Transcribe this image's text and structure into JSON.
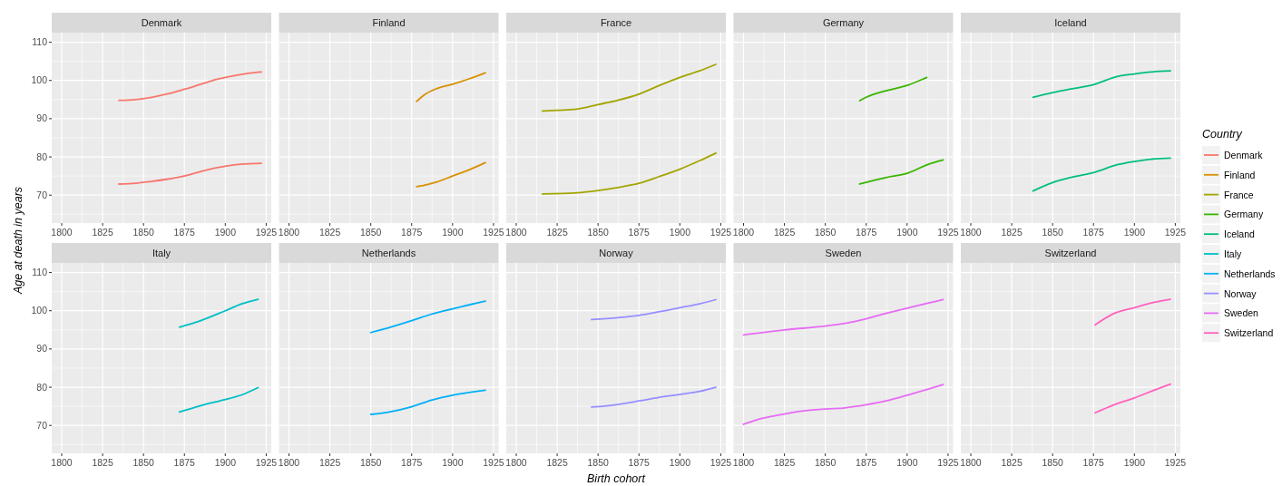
{
  "chart_data": [
    {
      "type": "line",
      "title": "Denmark",
      "ylabel": "Age at death in years",
      "legend": "right",
      "legend_title": "Country",
      "grid": true,
      "xlim": [
        1793.9,
        1928.1
      ],
      "ylim": [
        62.7,
        112.5
      ],
      "xticks": [
        1800,
        {
          "value": 1812.5,
          "label": null
        },
        1825,
        {
          "value": 1837.5,
          "label": null
        },
        1850,
        {
          "value": 1862.5,
          "label": null
        },
        1875,
        {
          "value": 1887.5,
          "label": null
        },
        1900,
        {
          "value": 1912.5,
          "label": null
        },
        1925
      ],
      "yticks": [
        {
          "value": 65,
          "label": null
        },
        70,
        {
          "value": 75,
          "label": null
        },
        80,
        {
          "value": 85,
          "label": null
        },
        90,
        {
          "value": 95,
          "label": null
        },
        100,
        {
          "value": 105,
          "label": null
        },
        110
      ],
      "series": [
        {
          "name": "Denmark",
          "color": "#f8766d",
          "x": [
            1835,
            1845,
            1855,
            1865,
            1875,
            1885,
            1895,
            1905,
            1915,
            1922
          ],
          "values": [
            94.8,
            95,
            95.6,
            96.5,
            97.7,
            99,
            100.3,
            101.2,
            101.9,
            102.2
          ]
        },
        {
          "color": "#f8766d",
          "x": [
            1835,
            1845,
            1855,
            1865,
            1875,
            1885,
            1895,
            1905,
            1915,
            1922
          ],
          "values": [
            72.9,
            73.1,
            73.6,
            74.2,
            75,
            76.2,
            77.2,
            77.9,
            78.2,
            78.3
          ]
        }
      ]
    },
    {
      "type": "line",
      "title": "Finland",
      "grid": true,
      "tick_labels": "x",
      "xlim": [
        1793.9,
        1928.1
      ],
      "ylim": [
        62.7,
        112.5
      ],
      "xticks": [
        1800,
        {
          "value": 1812.5,
          "label": null
        },
        1825,
        {
          "value": 1837.5,
          "label": null
        },
        1850,
        {
          "value": 1862.5,
          "label": null
        },
        1875,
        {
          "value": 1887.5,
          "label": null
        },
        1900,
        {
          "value": 1912.5,
          "label": null
        },
        1925
      ],
      "yticks": [
        {
          "value": 65,
          "label": null
        },
        70,
        {
          "value": 75,
          "label": null
        },
        80,
        {
          "value": 85,
          "label": null
        },
        90,
        {
          "value": 95,
          "label": null
        },
        100,
        {
          "value": 105,
          "label": null
        },
        110
      ],
      "series": [
        {
          "name": "Finland",
          "color": "#d89000",
          "x": [
            1878,
            1883,
            1890,
            1900,
            1910,
            1920
          ],
          "values": [
            94.5,
            96.3,
            97.8,
            99,
            100.4,
            102
          ]
        },
        {
          "color": "#d89000",
          "x": [
            1878,
            1885,
            1890,
            1900,
            1910,
            1920
          ],
          "values": [
            72.2,
            72.8,
            73.4,
            75,
            76.6,
            78.5
          ]
        }
      ]
    },
    {
      "type": "line",
      "title": "France",
      "grid": true,
      "tick_labels": "x",
      "xlim": [
        1793.9,
        1928.1
      ],
      "ylim": [
        62.7,
        112.5
      ],
      "xticks": [
        1800,
        {
          "value": 1812.5,
          "label": null
        },
        1825,
        {
          "value": 1837.5,
          "label": null
        },
        1850,
        {
          "value": 1862.5,
          "label": null
        },
        1875,
        {
          "value": 1887.5,
          "label": null
        },
        1900,
        {
          "value": 1912.5,
          "label": null
        },
        1925
      ],
      "yticks": [
        {
          "value": 65,
          "label": null
        },
        70,
        {
          "value": 75,
          "label": null
        },
        80,
        {
          "value": 85,
          "label": null
        },
        90,
        {
          "value": 95,
          "label": null
        },
        100,
        {
          "value": 105,
          "label": null
        },
        110
      ],
      "series": [
        {
          "name": "France",
          "color": "#a3a500",
          "x": [
            1816,
            1825,
            1837,
            1850,
            1862,
            1875,
            1887,
            1900,
            1912,
            1922
          ],
          "values": [
            92,
            92.2,
            92.5,
            93.7,
            94.8,
            96.4,
            98.6,
            100.8,
            102.5,
            104.2
          ]
        },
        {
          "color": "#a3a500",
          "x": [
            1816,
            1837,
            1850,
            1862,
            1875,
            1887,
            1900,
            1912,
            1922
          ],
          "values": [
            70.3,
            70.6,
            71.2,
            72,
            73.1,
            74.8,
            76.8,
            79,
            81
          ]
        }
      ]
    },
    {
      "type": "line",
      "title": "Germany",
      "grid": true,
      "tick_labels": "x",
      "xlim": [
        1793.9,
        1928.1
      ],
      "ylim": [
        62.7,
        112.5
      ],
      "xticks": [
        1800,
        {
          "value": 1812.5,
          "label": null
        },
        1825,
        {
          "value": 1837.5,
          "label": null
        },
        1850,
        {
          "value": 1862.5,
          "label": null
        },
        1875,
        {
          "value": 1887.5,
          "label": null
        },
        1900,
        {
          "value": 1912.5,
          "label": null
        },
        1925
      ],
      "yticks": [
        {
          "value": 65,
          "label": null
        },
        70,
        {
          "value": 75,
          "label": null
        },
        80,
        {
          "value": 85,
          "label": null
        },
        90,
        {
          "value": 95,
          "label": null
        },
        100,
        {
          "value": 105,
          "label": null
        },
        110
      ],
      "series": [
        {
          "name": "Germany",
          "color": "#39b600",
          "x": [
            1871,
            1875,
            1887,
            1900,
            1912
          ],
          "values": [
            94.7,
            95.6,
            97.3,
            98.7,
            100.8
          ]
        },
        {
          "color": "#39b600",
          "x": [
            1871,
            1887,
            1900,
            1912,
            1922
          ],
          "values": [
            72.9,
            74.6,
            75.7,
            77.9,
            79.2
          ]
        }
      ]
    },
    {
      "type": "line",
      "title": "Iceland",
      "grid": true,
      "tick_labels": "x",
      "xlim": [
        1793.9,
        1928.1
      ],
      "ylim": [
        62.7,
        112.5
      ],
      "xticks": [
        1800,
        {
          "value": 1812.5,
          "label": null
        },
        1825,
        {
          "value": 1837.5,
          "label": null
        },
        1850,
        {
          "value": 1862.5,
          "label": null
        },
        1875,
        {
          "value": 1887.5,
          "label": null
        },
        1900,
        {
          "value": 1912.5,
          "label": null
        },
        1925
      ],
      "yticks": [
        {
          "value": 65,
          "label": null
        },
        70,
        {
          "value": 75,
          "label": null
        },
        80,
        {
          "value": 85,
          "label": null
        },
        90,
        {
          "value": 95,
          "label": null
        },
        100,
        {
          "value": 105,
          "label": null
        },
        110
      ],
      "series": [
        {
          "name": "Iceland",
          "color": "#00bf7d",
          "x": [
            1838,
            1850,
            1862,
            1875,
            1890,
            1900,
            1910,
            1922
          ],
          "values": [
            95.6,
            96.8,
            97.8,
            98.9,
            101.1,
            101.7,
            102.2,
            102.5
          ]
        },
        {
          "color": "#00bf7d",
          "x": [
            1838,
            1850,
            1862,
            1875,
            1890,
            1900,
            1910,
            1922
          ],
          "values": [
            71.1,
            73.3,
            74.7,
            75.9,
            78,
            78.8,
            79.4,
            79.7
          ]
        }
      ]
    },
    {
      "type": "line",
      "title": "Italy",
      "grid": true,
      "xlim": [
        1793.9,
        1928.1
      ],
      "ylim": [
        62.7,
        112.5
      ],
      "xticks": [
        1800,
        {
          "value": 1812.5,
          "label": null
        },
        1825,
        {
          "value": 1837.5,
          "label": null
        },
        1850,
        {
          "value": 1862.5,
          "label": null
        },
        1875,
        {
          "value": 1887.5,
          "label": null
        },
        1900,
        {
          "value": 1912.5,
          "label": null
        },
        1925
      ],
      "yticks": [
        {
          "value": 65,
          "label": null
        },
        70,
        {
          "value": 75,
          "label": null
        },
        80,
        {
          "value": 85,
          "label": null
        },
        90,
        {
          "value": 95,
          "label": null
        },
        100,
        {
          "value": 105,
          "label": null
        },
        110
      ],
      "series": [
        {
          "name": "Italy",
          "color": "#00bfc4",
          "x": [
            1872,
            1885,
            1900,
            1910,
            1920
          ],
          "values": [
            95.7,
            97.4,
            100,
            101.8,
            103
          ]
        },
        {
          "color": "#00bfc4",
          "x": [
            1872,
            1885,
            1900,
            1910,
            1920
          ],
          "values": [
            73.5,
            75.2,
            76.8,
            78,
            79.9
          ]
        }
      ]
    },
    {
      "type": "line",
      "title": "Netherlands",
      "grid": true,
      "tick_labels": "x",
      "xlim": [
        1793.9,
        1928.1
      ],
      "ylim": [
        62.7,
        112.5
      ],
      "xticks": [
        1800,
        {
          "value": 1812.5,
          "label": null
        },
        1825,
        {
          "value": 1837.5,
          "label": null
        },
        1850,
        {
          "value": 1862.5,
          "label": null
        },
        1875,
        {
          "value": 1887.5,
          "label": null
        },
        1900,
        {
          "value": 1912.5,
          "label": null
        },
        1925
      ],
      "yticks": [
        {
          "value": 65,
          "label": null
        },
        70,
        {
          "value": 75,
          "label": null
        },
        80,
        {
          "value": 85,
          "label": null
        },
        90,
        {
          "value": 95,
          "label": null
        },
        100,
        {
          "value": 105,
          "label": null
        },
        110
      ],
      "series": [
        {
          "name": "Netherlands",
          "color": "#00b0f6",
          "x": [
            1850,
            1862,
            1875,
            1887,
            1900,
            1920
          ],
          "values": [
            94.3,
            95.7,
            97.4,
            99.1,
            100.5,
            102.5
          ]
        },
        {
          "color": "#00b0f6",
          "x": [
            1850,
            1862,
            1875,
            1887,
            1900,
            1920
          ],
          "values": [
            72.9,
            73.6,
            74.9,
            76.6,
            77.9,
            79.2
          ]
        }
      ]
    },
    {
      "type": "line",
      "title": "Norway",
      "xlabel": "Birth cohort",
      "grid": true,
      "tick_labels": "x",
      "xlim": [
        1793.9,
        1928.1
      ],
      "ylim": [
        62.7,
        112.5
      ],
      "xticks": [
        1800,
        {
          "value": 1812.5,
          "label": null
        },
        1825,
        {
          "value": 1837.5,
          "label": null
        },
        1850,
        {
          "value": 1862.5,
          "label": null
        },
        1875,
        {
          "value": 1887.5,
          "label": null
        },
        1900,
        {
          "value": 1912.5,
          "label": null
        },
        1925
      ],
      "yticks": [
        {
          "value": 65,
          "label": null
        },
        70,
        {
          "value": 75,
          "label": null
        },
        80,
        {
          "value": 85,
          "label": null
        },
        90,
        {
          "value": 95,
          "label": null
        },
        100,
        {
          "value": 105,
          "label": null
        },
        110
      ],
      "series": [
        {
          "name": "Norway",
          "color": "#9590ff",
          "x": [
            1846,
            1862,
            1875,
            1887,
            1900,
            1912,
            1922
          ],
          "values": [
            97.7,
            98.2,
            98.8,
            99.7,
            100.8,
            101.8,
            102.9
          ]
        },
        {
          "color": "#9590ff",
          "x": [
            1846,
            1862,
            1875,
            1887,
            1900,
            1912,
            1922
          ],
          "values": [
            74.8,
            75.5,
            76.4,
            77.3,
            78.1,
            78.9,
            80
          ]
        }
      ]
    },
    {
      "type": "line",
      "title": "Sweden",
      "grid": true,
      "tick_labels": "x",
      "xlim": [
        1793.9,
        1928.1
      ],
      "ylim": [
        62.7,
        112.5
      ],
      "xticks": [
        1800,
        {
          "value": 1812.5,
          "label": null
        },
        1825,
        {
          "value": 1837.5,
          "label": null
        },
        1850,
        {
          "value": 1862.5,
          "label": null
        },
        1875,
        {
          "value": 1887.5,
          "label": null
        },
        1900,
        {
          "value": 1912.5,
          "label": null
        },
        1925
      ],
      "yticks": [
        {
          "value": 65,
          "label": null
        },
        70,
        {
          "value": 75,
          "label": null
        },
        80,
        {
          "value": 85,
          "label": null
        },
        90,
        {
          "value": 95,
          "label": null
        },
        100,
        {
          "value": 105,
          "label": null
        },
        110
      ],
      "series": [
        {
          "name": "Sweden",
          "color": "#e76bf3",
          "x": [
            1800,
            1825,
            1850,
            1862,
            1875,
            1887,
            1900,
            1912,
            1922
          ],
          "values": [
            93.7,
            95,
            96,
            96.7,
            97.9,
            99.3,
            100.7,
            101.9,
            102.9
          ]
        },
        {
          "color": "#e76bf3",
          "x": [
            1800,
            1812,
            1825,
            1837,
            1850,
            1862,
            1875,
            1887,
            1900,
            1912,
            1922
          ],
          "values": [
            70.3,
            71.9,
            73,
            73.8,
            74.3,
            74.6,
            75.4,
            76.4,
            77.9,
            79.4,
            80.7
          ]
        }
      ]
    },
    {
      "type": "line",
      "title": "Switzerland",
      "grid": true,
      "tick_labels": "x",
      "xlim": [
        1793.9,
        1928.1
      ],
      "ylim": [
        62.7,
        112.5
      ],
      "xticks": [
        1800,
        {
          "value": 1812.5,
          "label": null
        },
        1825,
        {
          "value": 1837.5,
          "label": null
        },
        1850,
        {
          "value": 1862.5,
          "label": null
        },
        1875,
        {
          "value": 1887.5,
          "label": null
        },
        1900,
        {
          "value": 1912.5,
          "label": null
        },
        1925
      ],
      "yticks": [
        {
          "value": 65,
          "label": null
        },
        70,
        {
          "value": 75,
          "label": null
        },
        80,
        {
          "value": 85,
          "label": null
        },
        90,
        {
          "value": 95,
          "label": null
        },
        100,
        {
          "value": 105,
          "label": null
        },
        110
      ],
      "series": [
        {
          "name": "Switzerland",
          "color": "#ff62bc",
          "x": [
            1876,
            1887,
            1900,
            1912,
            1922
          ],
          "values": [
            96.3,
            99.2,
            100.8,
            102.2,
            103
          ]
        },
        {
          "color": "#ff62bc",
          "x": [
            1876,
            1887,
            1900,
            1912,
            1922
          ],
          "values": [
            73.3,
            75.3,
            77.2,
            79.2,
            80.8
          ]
        }
      ]
    }
  ]
}
